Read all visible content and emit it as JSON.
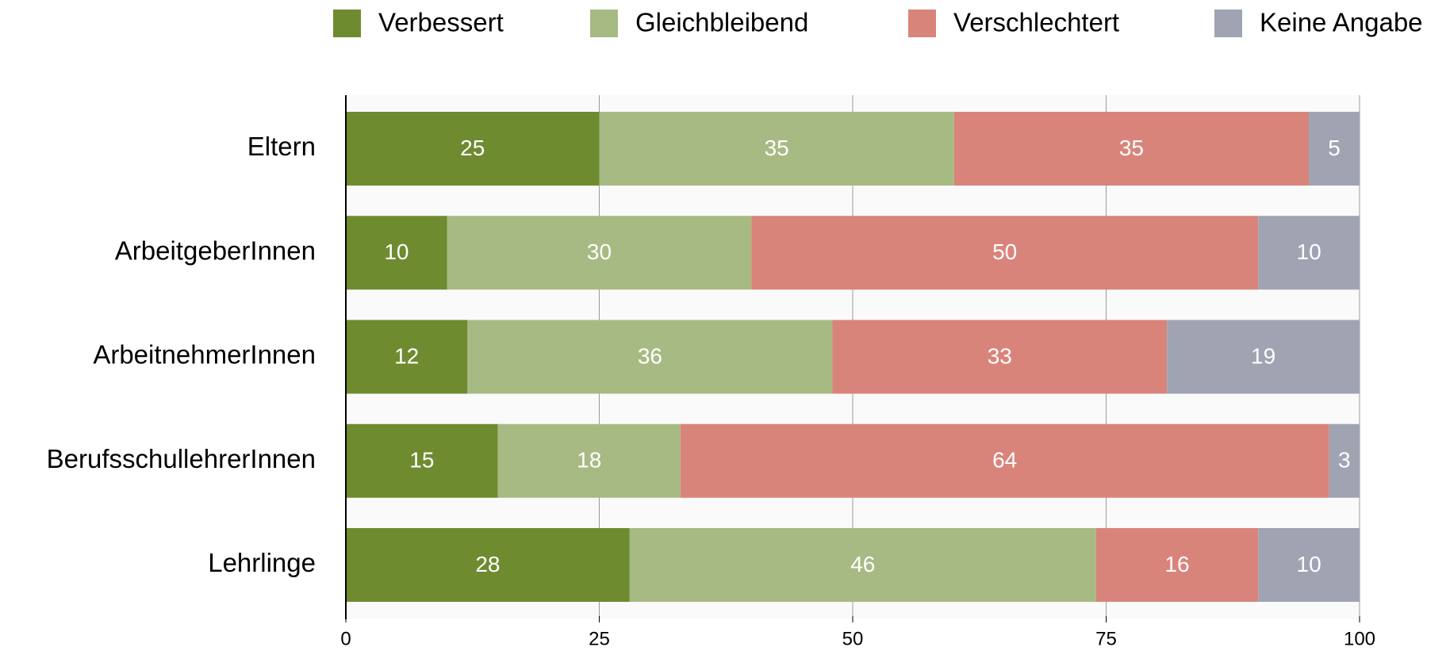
{
  "chart_data": {
    "type": "bar",
    "orientation": "horizontal",
    "stacked": true,
    "categories": [
      "Eltern",
      "ArbeitgeberInnen",
      "ArbeitnehmerInnen",
      "BerufsschullehrerInnen",
      "Lehrlinge"
    ],
    "series": [
      {
        "name": "Verbessert",
        "color": "#6e8b30",
        "values": [
          25,
          10,
          12,
          15,
          28
        ]
      },
      {
        "name": "Gleichbleibend",
        "color": "#a8ba83",
        "values": [
          35,
          30,
          36,
          18,
          46
        ]
      },
      {
        "name": "Verschlechtert",
        "color": "#d9847b",
        "values": [
          35,
          50,
          33,
          64,
          16
        ]
      },
      {
        "name": "Keine Angabe",
        "color": "#a0a4b2",
        "values": [
          5,
          10,
          19,
          3,
          10
        ]
      }
    ],
    "xlim": [
      0,
      100
    ],
    "xticks": [
      0,
      25,
      50,
      75,
      100
    ],
    "grid": true,
    "legend": "top"
  }
}
